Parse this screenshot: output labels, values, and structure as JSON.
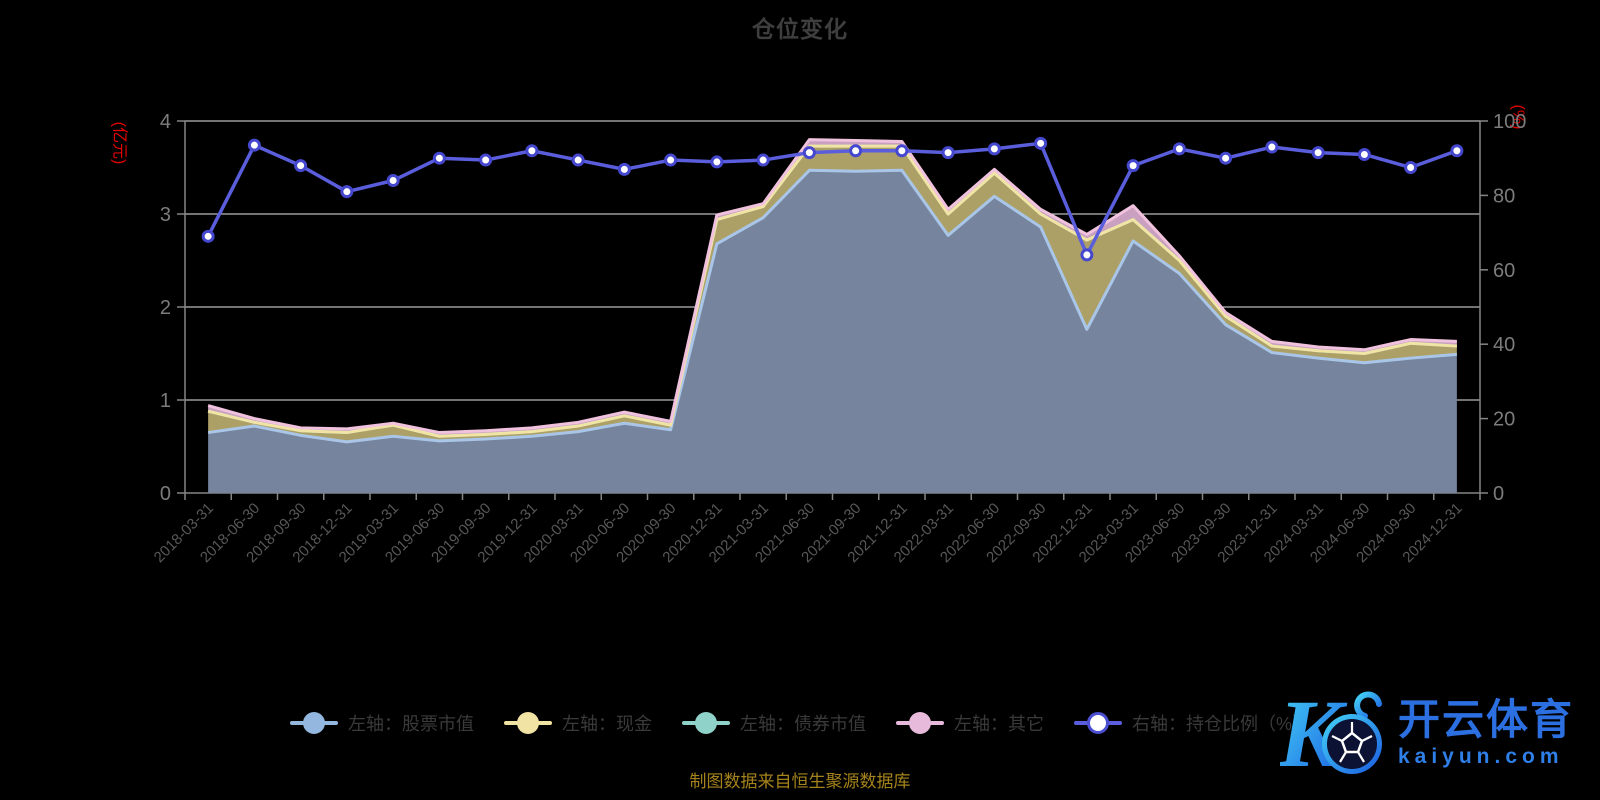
{
  "title": "仓位变化",
  "caption": "制图数据来自恒生聚源数据库",
  "watermark": {
    "brand": "开云体育",
    "domain": "kaiyun.com",
    "monogram": "K"
  },
  "colors": {
    "background": "#000000",
    "title": "#3E3E3E",
    "axis_line": "#858585",
    "grid_line": "#E9E9E9",
    "y_label": "#7C7C7C",
    "x_label": "#585858",
    "unit_label": "#E60000",
    "legend_text": "#3A3A3A",
    "caption": "#A5831C",
    "watermark_gradient_start": "#45D4F7",
    "watermark_gradient_end": "#1A5BE0"
  },
  "chart_data": {
    "type": "area",
    "stacked": true,
    "grid": true,
    "legend_position": "bottom",
    "categories": [
      "2018-03-31",
      "2018-06-30",
      "2018-09-30",
      "2018-12-31",
      "2019-03-31",
      "2019-06-30",
      "2019-09-30",
      "2019-12-31",
      "2020-03-31",
      "2020-06-30",
      "2020-09-30",
      "2020-12-31",
      "2021-03-31",
      "2021-06-30",
      "2021-09-30",
      "2021-12-31",
      "2022-03-31",
      "2022-06-30",
      "2022-09-30",
      "2022-12-31",
      "2023-03-31",
      "2023-06-30",
      "2023-09-30",
      "2023-12-31",
      "2024-03-31",
      "2024-06-30",
      "2024-09-30",
      "2024-12-31"
    ],
    "left_axis": {
      "unit": "(亿元)",
      "min": 0,
      "max": 4,
      "ticks": [
        0,
        1,
        2,
        3,
        4
      ]
    },
    "right_axis": {
      "unit": "(%)",
      "min": 0,
      "max": 100,
      "ticks": [
        0,
        20,
        40,
        60,
        80,
        100
      ]
    },
    "series": [
      {
        "name": "左轴：股票市值",
        "axis": "left",
        "type": "area",
        "fill": "#76849E",
        "stroke": "#A9C6E8",
        "legend_color": "#93B7DF",
        "values": [
          0.65,
          0.72,
          0.62,
          0.55,
          0.61,
          0.56,
          0.58,
          0.61,
          0.66,
          0.75,
          0.68,
          2.68,
          2.96,
          3.47,
          3.46,
          3.47,
          2.77,
          3.19,
          2.86,
          1.76,
          2.71,
          2.36,
          1.81,
          1.51,
          1.45,
          1.4,
          1.45,
          1.49
        ]
      },
      {
        "name": "左轴：现金",
        "axis": "left",
        "type": "area",
        "fill": "#ACA067",
        "stroke": "#F2E4A4",
        "legend_color": "#F1E3A3",
        "values": [
          0.23,
          0.04,
          0.05,
          0.1,
          0.12,
          0.05,
          0.05,
          0.05,
          0.06,
          0.08,
          0.05,
          0.26,
          0.12,
          0.26,
          0.27,
          0.26,
          0.23,
          0.25,
          0.14,
          0.96,
          0.23,
          0.14,
          0.09,
          0.07,
          0.08,
          0.1,
          0.16,
          0.09
        ]
      },
      {
        "name": "左轴：债券市值",
        "axis": "left",
        "type": "area",
        "fill": "#5FB9AE",
        "stroke": "#8FD2C9",
        "legend_color": "#8FD2C9",
        "values": [
          0,
          0,
          0,
          0,
          0,
          0,
          0,
          0,
          0,
          0,
          0,
          0,
          0,
          0,
          0,
          0,
          0,
          0,
          0,
          0,
          0,
          0,
          0,
          0,
          0,
          0,
          0,
          0
        ]
      },
      {
        "name": "左轴：其它",
        "axis": "left",
        "type": "area",
        "fill": "#C9A0C0",
        "stroke": "#F0C2DE",
        "legend_color": "#E7BADC",
        "values": [
          0.06,
          0.04,
          0.03,
          0.04,
          0.02,
          0.04,
          0.04,
          0.04,
          0.04,
          0.04,
          0.04,
          0.05,
          0.03,
          0.07,
          0.06,
          0.05,
          0.05,
          0.04,
          0.05,
          0.06,
          0.15,
          0.05,
          0.04,
          0.05,
          0.04,
          0.04,
          0.04,
          0.05
        ]
      },
      {
        "name": "右轴：持仓比例（%）",
        "axis": "right",
        "type": "line",
        "stroke": "#5A5EDC",
        "dot_fill": "#FFFFFF",
        "dot_stroke": "#4548CE",
        "legend_color": "#FFFFFF",
        "legend_ring": "#4B4FD2",
        "values": [
          69,
          93.5,
          88,
          81,
          84,
          90,
          89.5,
          92,
          89.5,
          87,
          89.5,
          89,
          89.5,
          91.5,
          92,
          92,
          91.5,
          92.5,
          94,
          64,
          88,
          92.5,
          90,
          93,
          91.5,
          91,
          87.5,
          92
        ]
      }
    ]
  }
}
